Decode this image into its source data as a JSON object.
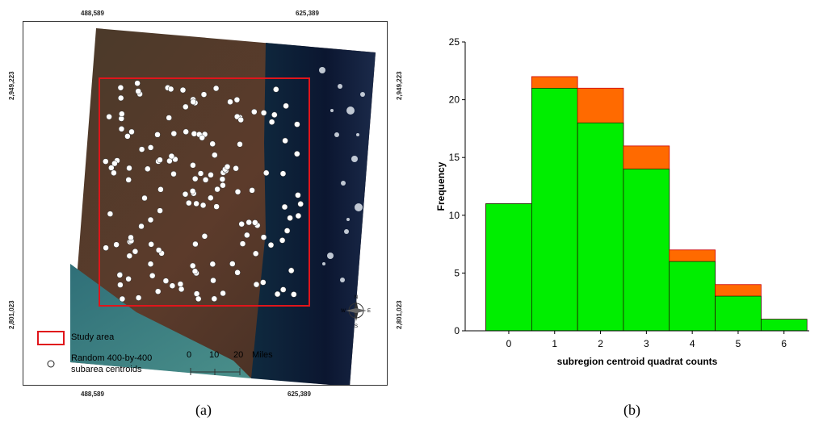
{
  "panel_a": {
    "label": "(a)",
    "top_coords": {
      "left": "488,589",
      "right": "625,389"
    },
    "bottom_coords": {
      "left": "488,589",
      "right": "625,389"
    },
    "left_coords": {
      "top": "2,949,223",
      "bottom": "2,801,023"
    },
    "right_coords": {
      "top": "2,949,223",
      "bottom": "2,801,023"
    },
    "legend": {
      "study_area": "Study area",
      "centroids_line1": "Random 400-by-400",
      "centroids_line2": "subarea centroids"
    },
    "scale": {
      "t0": "0",
      "t1": "10",
      "t2": "20",
      "unit": "Miles"
    },
    "compass": {
      "n": "N",
      "s": "S",
      "e": "E",
      "w": "W"
    },
    "colors": {
      "study_area_border": "#e0151b",
      "ocean": "#0e1a3a",
      "land": "#5a3a2a"
    }
  },
  "panel_b": {
    "label": "(b)"
  },
  "chart_data": {
    "type": "bar",
    "xlabel": "subregion centroid quadrat counts",
    "ylabel": "Frequency",
    "categories": [
      "0",
      "1",
      "2",
      "3",
      "4",
      "5",
      "6"
    ],
    "ylim": [
      0,
      25
    ],
    "yticks": [
      "0",
      "5",
      "10",
      "15",
      "20",
      "25"
    ],
    "series": [
      {
        "values": [
          11,
          21,
          18,
          14,
          6,
          3,
          1
        ],
        "color": "#00ee00"
      },
      {
        "values": [
          11,
          22,
          21,
          16,
          7,
          4,
          1
        ],
        "color": "#ff6a00"
      }
    ],
    "grid": false
  }
}
